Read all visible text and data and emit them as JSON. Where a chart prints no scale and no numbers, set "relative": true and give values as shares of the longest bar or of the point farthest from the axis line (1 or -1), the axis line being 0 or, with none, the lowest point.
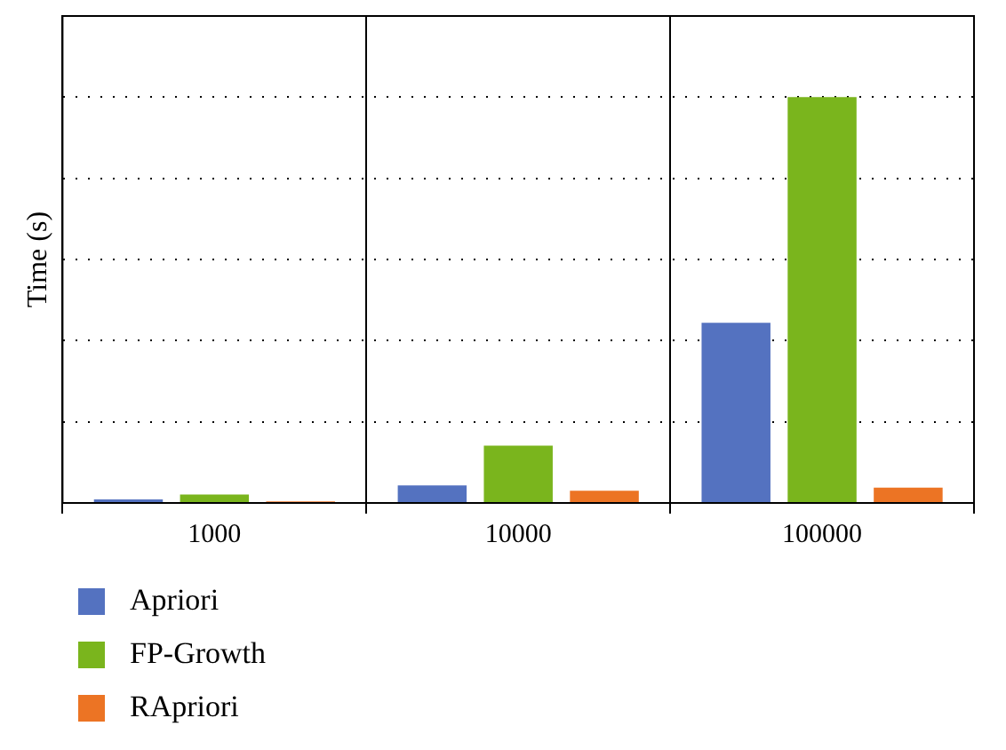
{
  "chart_data": {
    "type": "bar",
    "ylabel": "Time (s)",
    "categories": [
      "1000",
      "10000",
      "100000"
    ],
    "relative": true,
    "grid": true,
    "legend": "bottom left",
    "series": [
      {
        "name": "Apriori",
        "color": "#5472c0",
        "values": [
          0.009,
          0.043,
          0.444
        ]
      },
      {
        "name": "FP-Growth",
        "color": "#7ab51d",
        "values": [
          0.021,
          0.141,
          1
        ]
      },
      {
        "name": "RApriori",
        "color": "#ec7424",
        "values": [
          0.004,
          0.03,
          0.038
        ]
      }
    ]
  }
}
